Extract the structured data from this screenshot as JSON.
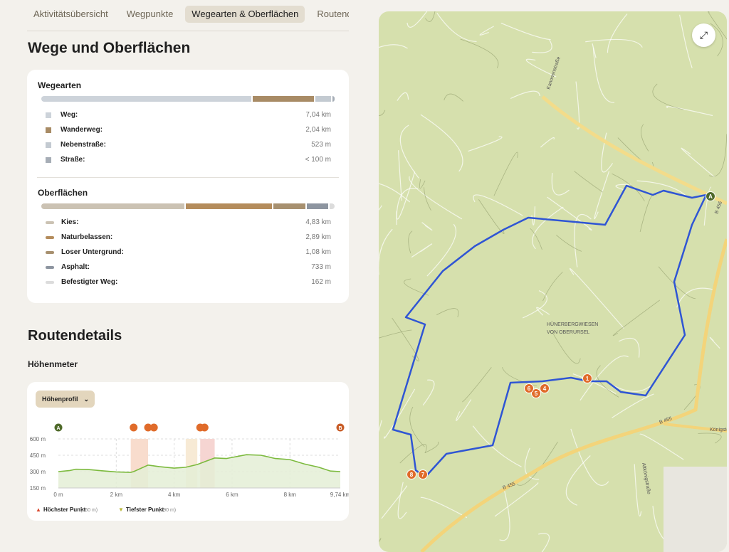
{
  "tabs": [
    {
      "label": "Aktivitätsübersicht"
    },
    {
      "label": "Wegpunkte"
    },
    {
      "label": "Wegearten & Oberflächen",
      "active": true
    },
    {
      "label": "Routend"
    }
  ],
  "title": "Wege und Oberflächen",
  "wegearten": {
    "title": "Wegearten",
    "items": [
      {
        "label": "Weg:",
        "value": "7,04 km",
        "km": 7.04,
        "color": "#cdd3da"
      },
      {
        "label": "Wanderweg:",
        "value": "2,04 km",
        "km": 2.04,
        "color": "#a88b65"
      },
      {
        "label": "Nebenstraße:",
        "value": "523 m",
        "km": 0.523,
        "color": "#c3cad1"
      },
      {
        "label": "Straße:",
        "value": "< 100 m",
        "km": 0.07,
        "color": "#a6adb6"
      }
    ]
  },
  "oberflaechen": {
    "title": "Oberflächen",
    "items": [
      {
        "label": "Kies:",
        "value": "4,83 km",
        "km": 4.83,
        "color": "#cbc2b3"
      },
      {
        "label": "Naturbelassen:",
        "value": "2,89 km",
        "km": 2.89,
        "color": "#b48c5c"
      },
      {
        "label": "Loser Untergrund:",
        "value": "1,08 km",
        "km": 1.08,
        "color": "#a7906f"
      },
      {
        "label": "Asphalt:",
        "value": "733 m",
        "km": 0.733,
        "color": "#8d95a0"
      },
      {
        "label": "Befestigter Weg:",
        "value": "162 m",
        "km": 0.162,
        "color": "#dcdcdc"
      }
    ]
  },
  "routendetails": {
    "title": "Routendetails",
    "subtitle": "Höhenmeter",
    "dropdown": "Höhenprofil"
  },
  "chart_data": {
    "type": "area",
    "xlim": [
      0,
      9.74
    ],
    "ylim": [
      150,
      600
    ],
    "x_ticks": [
      "0 m",
      "2 km",
      "4 km",
      "6 km",
      "8 km",
      "9,74 km"
    ],
    "x_tick_values": [
      0,
      2,
      4,
      6,
      8,
      9.74
    ],
    "y_ticks": [
      "600 m",
      "450 m",
      "300 m",
      "150 m"
    ],
    "y_tick_values": [
      600,
      450,
      300,
      150
    ],
    "x": [
      0,
      0.4,
      0.6,
      1,
      1.5,
      2,
      2.5,
      2.6,
      3.1,
      3.5,
      4,
      4.4,
      4.8,
      5.1,
      5.4,
      5.8,
      6.5,
      7,
      7.5,
      8,
      8.5,
      9,
      9.4,
      9.74
    ],
    "y": [
      300,
      310,
      322,
      320,
      308,
      297,
      293,
      300,
      360,
      345,
      332,
      340,
      365,
      395,
      425,
      420,
      455,
      450,
      420,
      410,
      370,
      340,
      305,
      300
    ],
    "markers": [
      {
        "label": "A",
        "x": 0,
        "color": "#4f6a2a"
      },
      {
        "label": "",
        "x": 2.6,
        "color": "#e06b2a"
      },
      {
        "label": "",
        "x": 3.1,
        "color": "#e06b2a"
      },
      {
        "label": "",
        "x": 3.3,
        "color": "#e06b2a"
      },
      {
        "label": "",
        "x": 4.9,
        "color": "#e06b2a"
      },
      {
        "label": "",
        "x": 5.05,
        "color": "#e06b2a"
      },
      {
        "label": "B",
        "x": 9.74,
        "color": "#c85d28"
      }
    ],
    "legend": [
      {
        "label": "Höchster Punkt",
        "note": "(460 m)",
        "color": "#d9452b"
      },
      {
        "label": "Tiefster Punkt",
        "note": "(290 m)",
        "color": "#b9b73a"
      }
    ]
  },
  "map": {
    "labels": [
      "Kanonenstraße",
      "HÜNERBERGWIESEN",
      "VON OBERURSEL",
      "B 455",
      "B 455",
      "B 456",
      "Königstein",
      "Altkönigstraße"
    ],
    "pins": [
      "1",
      "4",
      "5",
      "6",
      "7",
      "8",
      "A"
    ],
    "route_color": "#2f55d4"
  }
}
